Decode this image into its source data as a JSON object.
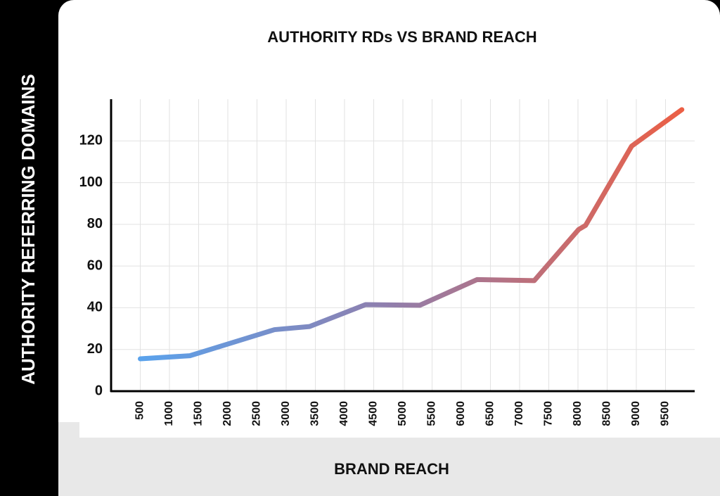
{
  "chart_data": {
    "type": "line",
    "title": "AUTHORITY RDs VS BRAND REACH",
    "x_label": "BRAND REACH",
    "y_label": "AUTHORITY REFERRING DOMAINS",
    "x": [
      500,
      1350,
      2800,
      3400,
      4360,
      5290,
      6270,
      7250,
      8010,
      8130,
      8920,
      9780
    ],
    "values": [
      15.5,
      17,
      29.5,
      31,
      41.5,
      41.2,
      53.5,
      53,
      77.5,
      79.5,
      117.5,
      135
    ],
    "xlim": [
      0,
      10000
    ],
    "xticks": [
      500,
      1000,
      1500,
      2000,
      2500,
      3000,
      3500,
      4000,
      4500,
      5000,
      5500,
      6000,
      6500,
      7000,
      7500,
      8000,
      8500,
      9000,
      9500
    ],
    "ylim": [
      0,
      140
    ],
    "yticks": [
      0,
      20,
      40,
      60,
      80,
      100,
      120
    ],
    "grid": true
  }
}
